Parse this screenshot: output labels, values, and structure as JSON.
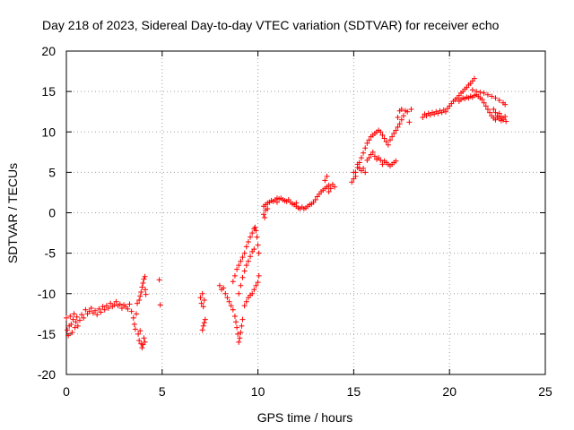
{
  "chart_data": {
    "type": "scatter",
    "title": "Day 218 of 2023, Sidereal Day-to-day VTEC variation (SDTVAR) for receiver echo",
    "xlabel": "GPS time / hours",
    "ylabel": "SDTVAR / TECUs",
    "xlim": [
      0,
      25
    ],
    "ylim": [
      -20,
      20
    ],
    "xticks": [
      0,
      5,
      10,
      15,
      20,
      25
    ],
    "yticks": [
      -20,
      -15,
      -10,
      -5,
      0,
      5,
      10,
      15,
      20
    ],
    "grid": true,
    "marker": "+",
    "color": "#ff0000",
    "series": [
      {
        "name": "SDTVAR",
        "points": [
          [
            0.0,
            -13.0
          ],
          [
            0.05,
            -14.5
          ],
          [
            0.1,
            -15.2
          ],
          [
            0.15,
            -14.0
          ],
          [
            0.2,
            -12.8
          ],
          [
            0.25,
            -13.8
          ],
          [
            0.3,
            -14.8
          ],
          [
            0.35,
            -13.2
          ],
          [
            0.4,
            -12.5
          ],
          [
            0.45,
            -14.2
          ],
          [
            0.5,
            -13.5
          ],
          [
            0.55,
            -12.9
          ],
          [
            0.6,
            -14.0
          ],
          [
            0.7,
            -13.3
          ],
          [
            0.8,
            -12.6
          ],
          [
            0.9,
            -13.0
          ],
          [
            1.0,
            -12.0
          ],
          [
            1.1,
            -12.5
          ],
          [
            1.2,
            -12.2
          ],
          [
            1.3,
            -11.8
          ],
          [
            1.4,
            -12.4
          ],
          [
            1.5,
            -12.1
          ],
          [
            1.6,
            -12.6
          ],
          [
            1.7,
            -11.9
          ],
          [
            1.8,
            -12.3
          ],
          [
            1.9,
            -11.6
          ],
          [
            2.0,
            -12.0
          ],
          [
            2.1,
            -11.5
          ],
          [
            2.2,
            -11.8
          ],
          [
            2.3,
            -11.2
          ],
          [
            2.4,
            -11.6
          ],
          [
            2.5,
            -11.4
          ],
          [
            2.6,
            -11.0
          ],
          [
            2.7,
            -11.5
          ],
          [
            2.8,
            -11.3
          ],
          [
            2.9,
            -11.8
          ],
          [
            3.0,
            -11.4
          ],
          [
            3.1,
            -11.6
          ],
          [
            3.2,
            -11.9
          ],
          [
            3.3,
            -11.3
          ],
          [
            3.4,
            -12.2
          ],
          [
            3.5,
            -13.0
          ],
          [
            3.55,
            -13.8
          ],
          [
            3.6,
            -14.4
          ],
          [
            3.65,
            -12.5
          ],
          [
            3.7,
            -11.2
          ],
          [
            3.75,
            -15.0
          ],
          [
            3.8,
            -15.8
          ],
          [
            3.85,
            -14.6
          ],
          [
            3.9,
            -16.2
          ],
          [
            3.95,
            -16.7
          ],
          [
            4.0,
            -16.3
          ],
          [
            4.05,
            -15.5
          ],
          [
            4.1,
            -16.0
          ],
          [
            3.8,
            -10.8
          ],
          [
            3.85,
            -10.3
          ],
          [
            3.9,
            -9.8
          ],
          [
            3.95,
            -9.2
          ],
          [
            4.0,
            -8.7
          ],
          [
            4.05,
            -8.2
          ],
          [
            4.1,
            -7.9
          ],
          [
            4.12,
            -9.5
          ],
          [
            4.15,
            -10.1
          ],
          [
            4.85,
            -8.3
          ],
          [
            4.9,
            -11.4
          ],
          [
            7.0,
            -10.5
          ],
          [
            7.05,
            -11.2
          ],
          [
            7.1,
            -10.0
          ],
          [
            7.15,
            -11.6
          ],
          [
            7.2,
            -10.8
          ],
          [
            7.1,
            -14.5
          ],
          [
            7.15,
            -14.0
          ],
          [
            7.2,
            -13.6
          ],
          [
            7.25,
            -13.2
          ],
          [
            8.0,
            -9.0
          ],
          [
            8.1,
            -9.5
          ],
          [
            8.2,
            -9.3
          ],
          [
            8.3,
            -10.0
          ],
          [
            8.4,
            -10.5
          ],
          [
            8.5,
            -11.0
          ],
          [
            8.6,
            -11.5
          ],
          [
            8.7,
            -12.0
          ],
          [
            8.8,
            -12.8
          ],
          [
            8.85,
            -13.5
          ],
          [
            8.9,
            -14.2
          ],
          [
            8.95,
            -15.0
          ],
          [
            9.0,
            -16.0
          ],
          [
            9.05,
            -15.5
          ],
          [
            9.1,
            -14.8
          ],
          [
            9.15,
            -14.0
          ],
          [
            9.2,
            -13.2
          ],
          [
            8.7,
            -8.5
          ],
          [
            8.8,
            -7.8
          ],
          [
            8.9,
            -7.0
          ],
          [
            9.0,
            -6.5
          ],
          [
            9.1,
            -6.0
          ],
          [
            9.2,
            -5.5
          ],
          [
            9.3,
            -5.0
          ],
          [
            9.4,
            -4.2
          ],
          [
            9.5,
            -3.6
          ],
          [
            9.6,
            -3.0
          ],
          [
            9.7,
            -2.5
          ],
          [
            9.8,
            -2.0
          ],
          [
            9.85,
            -1.8
          ],
          [
            9.9,
            -2.2
          ],
          [
            9.95,
            -3.0
          ],
          [
            10.0,
            -4.0
          ],
          [
            10.05,
            -5.0
          ],
          [
            9.3,
            -11.5
          ],
          [
            9.4,
            -11.0
          ],
          [
            9.5,
            -10.5
          ],
          [
            9.6,
            -10.2
          ],
          [
            9.7,
            -10.0
          ],
          [
            9.8,
            -9.5
          ],
          [
            9.9,
            -9.0
          ],
          [
            10.0,
            -8.6
          ],
          [
            10.05,
            -7.8
          ],
          [
            9.0,
            -10.0
          ],
          [
            9.1,
            -9.0
          ],
          [
            9.2,
            -8.0
          ],
          [
            9.3,
            -7.2
          ],
          [
            9.4,
            -6.5
          ],
          [
            9.5,
            -6.0
          ],
          [
            9.6,
            -5.4
          ],
          [
            9.7,
            -4.8
          ],
          [
            9.8,
            -4.5
          ],
          [
            10.3,
            0.8
          ],
          [
            10.4,
            1.0
          ],
          [
            10.5,
            1.2
          ],
          [
            10.6,
            1.3
          ],
          [
            10.7,
            1.5
          ],
          [
            10.8,
            1.4
          ],
          [
            10.9,
            1.6
          ],
          [
            11.0,
            1.8
          ],
          [
            11.1,
            1.7
          ],
          [
            11.2,
            1.8
          ],
          [
            11.3,
            1.6
          ],
          [
            11.4,
            1.5
          ],
          [
            11.5,
            1.4
          ],
          [
            11.6,
            1.6
          ],
          [
            11.7,
            1.3
          ],
          [
            11.8,
            1.1
          ],
          [
            11.9,
            1.0
          ],
          [
            12.0,
            0.8
          ],
          [
            12.1,
            0.6
          ],
          [
            12.2,
            0.5
          ],
          [
            12.3,
            0.7
          ],
          [
            12.4,
            0.5
          ],
          [
            12.5,
            0.6
          ],
          [
            12.6,
            0.8
          ],
          [
            12.7,
            1.0
          ],
          [
            12.8,
            1.1
          ],
          [
            12.9,
            1.3
          ],
          [
            13.0,
            1.6
          ],
          [
            13.1,
            2.0
          ],
          [
            13.2,
            2.3
          ],
          [
            13.3,
            2.6
          ],
          [
            13.4,
            2.8
          ],
          [
            13.5,
            3.0
          ],
          [
            13.6,
            3.2
          ],
          [
            13.7,
            3.4
          ],
          [
            13.8,
            3.0
          ],
          [
            13.9,
            3.5
          ],
          [
            14.0,
            3.2
          ],
          [
            10.3,
            -0.2
          ],
          [
            10.35,
            -0.6
          ],
          [
            10.4,
            0.3
          ],
          [
            10.5,
            0.5
          ],
          [
            11.0,
            1.3
          ],
          [
            12.0,
            1.2
          ],
          [
            13.5,
            4.0
          ],
          [
            13.6,
            4.5
          ],
          [
            13.7,
            2.6
          ],
          [
            14.9,
            3.8
          ],
          [
            15.0,
            4.2
          ],
          [
            15.1,
            5.0
          ],
          [
            15.2,
            5.6
          ],
          [
            15.3,
            6.2
          ],
          [
            15.4,
            6.8
          ],
          [
            15.5,
            7.4
          ],
          [
            15.6,
            8.0
          ],
          [
            15.7,
            8.6
          ],
          [
            15.8,
            9.0
          ],
          [
            15.9,
            9.4
          ],
          [
            16.0,
            9.6
          ],
          [
            16.1,
            9.8
          ],
          [
            16.2,
            10.0
          ],
          [
            16.3,
            10.2
          ],
          [
            16.4,
            10.0
          ],
          [
            16.5,
            9.6
          ],
          [
            16.6,
            9.2
          ],
          [
            16.7,
            8.8
          ],
          [
            16.8,
            8.4
          ],
          [
            16.9,
            9.0
          ],
          [
            17.0,
            9.4
          ],
          [
            17.1,
            9.8
          ],
          [
            17.2,
            10.2
          ],
          [
            17.3,
            10.6
          ],
          [
            17.4,
            11.0
          ],
          [
            17.5,
            11.5
          ],
          [
            17.6,
            12.0
          ],
          [
            17.7,
            12.6
          ],
          [
            15.0,
            5.0
          ],
          [
            15.1,
            4.5
          ],
          [
            15.2,
            6.0
          ],
          [
            15.3,
            5.5
          ],
          [
            15.4,
            5.2
          ],
          [
            15.5,
            5.5
          ],
          [
            15.6,
            5.0
          ],
          [
            15.7,
            6.5
          ],
          [
            15.8,
            6.8
          ],
          [
            15.9,
            7.2
          ],
          [
            16.0,
            7.5
          ],
          [
            16.1,
            7.0
          ],
          [
            16.2,
            6.6
          ],
          [
            16.3,
            6.8
          ],
          [
            16.4,
            6.5
          ],
          [
            16.5,
            6.0
          ],
          [
            16.6,
            6.4
          ],
          [
            16.7,
            6.2
          ],
          [
            16.8,
            6.0
          ],
          [
            16.9,
            5.8
          ],
          [
            17.0,
            6.0
          ],
          [
            17.1,
            6.2
          ],
          [
            17.2,
            6.4
          ],
          [
            17.3,
            11.8
          ],
          [
            17.4,
            12.6
          ],
          [
            17.5,
            12.8
          ],
          [
            17.8,
            12.5
          ],
          [
            18.0,
            12.8
          ],
          [
            17.9,
            11.2
          ],
          [
            18.6,
            11.8
          ],
          [
            18.7,
            12.2
          ],
          [
            18.8,
            12.0
          ],
          [
            18.9,
            12.3
          ],
          [
            19.0,
            12.1
          ],
          [
            19.1,
            12.4
          ],
          [
            19.2,
            12.2
          ],
          [
            19.3,
            12.5
          ],
          [
            19.4,
            12.3
          ],
          [
            19.5,
            12.6
          ],
          [
            19.6,
            12.4
          ],
          [
            19.7,
            12.7
          ],
          [
            19.8,
            12.5
          ],
          [
            19.9,
            12.9
          ],
          [
            20.0,
            13.2
          ],
          [
            20.1,
            13.5
          ],
          [
            20.2,
            13.8
          ],
          [
            20.3,
            14.0
          ],
          [
            20.4,
            14.2
          ],
          [
            20.5,
            14.5
          ],
          [
            20.6,
            14.8
          ],
          [
            20.7,
            15.0
          ],
          [
            20.8,
            15.3
          ],
          [
            20.9,
            15.5
          ],
          [
            21.0,
            15.8
          ],
          [
            21.1,
            16.0
          ],
          [
            21.2,
            16.3
          ],
          [
            21.3,
            16.6
          ],
          [
            20.5,
            13.8
          ],
          [
            20.6,
            14.0
          ],
          [
            20.7,
            14.2
          ],
          [
            20.8,
            14.1
          ],
          [
            20.9,
            14.3
          ],
          [
            21.0,
            14.2
          ],
          [
            21.1,
            14.4
          ],
          [
            21.2,
            14.3
          ],
          [
            21.3,
            14.5
          ],
          [
            21.4,
            14.6
          ],
          [
            21.5,
            14.4
          ],
          [
            21.6,
            14.2
          ],
          [
            21.7,
            14.0
          ],
          [
            21.8,
            13.6
          ],
          [
            21.9,
            13.2
          ],
          [
            22.0,
            12.8
          ],
          [
            22.1,
            12.4
          ],
          [
            22.2,
            12.0
          ],
          [
            22.3,
            11.7
          ],
          [
            22.4,
            11.5
          ],
          [
            22.5,
            11.8
          ],
          [
            22.6,
            11.6
          ],
          [
            22.7,
            11.4
          ],
          [
            22.8,
            11.7
          ],
          [
            21.2,
            15.2
          ],
          [
            21.4,
            15.0
          ],
          [
            21.6,
            14.9
          ],
          [
            21.8,
            14.8
          ],
          [
            22.0,
            14.6
          ],
          [
            22.2,
            14.4
          ],
          [
            22.4,
            14.2
          ],
          [
            22.6,
            13.9
          ],
          [
            22.8,
            13.6
          ],
          [
            22.9,
            13.4
          ],
          [
            22.3,
            12.8
          ],
          [
            22.4,
            12.4
          ],
          [
            22.5,
            12.0
          ],
          [
            22.6,
            12.3
          ],
          [
            22.7,
            11.9
          ],
          [
            22.8,
            11.5
          ],
          [
            22.9,
            11.9
          ],
          [
            22.95,
            11.3
          ]
        ]
      }
    ]
  }
}
